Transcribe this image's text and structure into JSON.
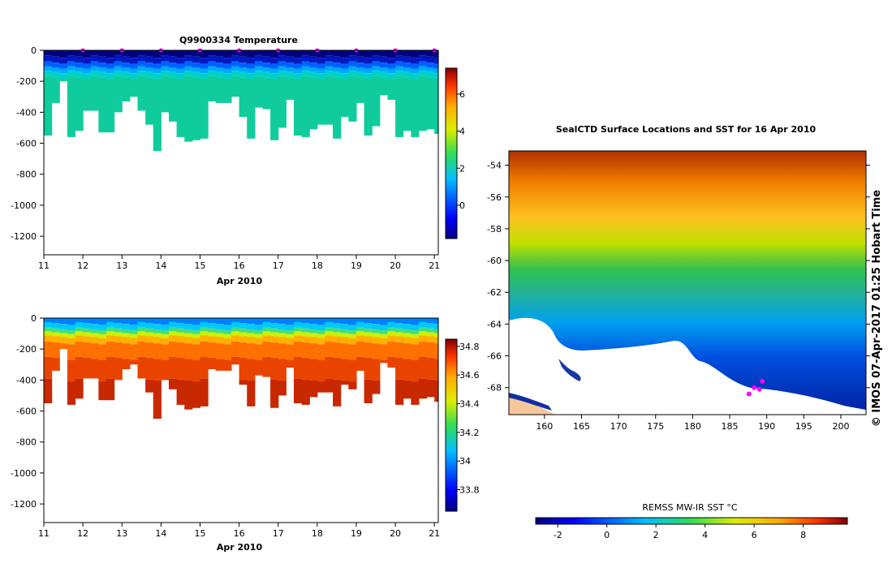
{
  "chart_data": [
    {
      "type": "heatmap",
      "title": "Q9900334  Temperature",
      "xlabel": "Apr 2010",
      "ylabel": "",
      "x_ticks": [
        "11",
        "12",
        "13",
        "14",
        "15",
        "16",
        "17",
        "18",
        "19",
        "20",
        "21"
      ],
      "xlim": [
        11,
        21.1
      ],
      "y_ticks": [
        "0",
        "-200",
        "-400",
        "-600",
        "-800",
        "-1000",
        "-1200"
      ],
      "ylim": [
        -1320,
        0
      ],
      "colorbar": {
        "ticks": [
          "6",
          "4",
          "2",
          "0"
        ],
        "range": [
          -1.8,
          7.4
        ]
      },
      "profile_times": [
        11.0,
        11.2,
        11.4,
        11.6,
        11.8,
        12.0,
        12.2,
        12.4,
        12.6,
        12.8,
        13.0,
        13.2,
        13.4,
        13.6,
        13.8,
        14.0,
        14.2,
        14.4,
        14.6,
        14.8,
        15.0,
        15.2,
        15.4,
        15.6,
        15.8,
        16.0,
        16.2,
        16.4,
        16.6,
        16.8,
        17.0,
        17.2,
        17.4,
        17.6,
        17.8,
        18.0,
        18.2,
        18.4,
        18.6,
        18.8,
        19.0,
        19.2,
        19.4,
        19.6,
        19.8,
        20.0,
        20.2,
        20.4,
        20.6,
        20.8,
        21.0
      ],
      "max_depths": [
        550,
        340,
        200,
        560,
        520,
        390,
        390,
        530,
        530,
        400,
        330,
        300,
        390,
        480,
        650,
        400,
        460,
        560,
        590,
        580,
        570,
        330,
        340,
        340,
        300,
        430,
        570,
        370,
        380,
        580,
        500,
        320,
        550,
        560,
        510,
        480,
        480,
        570,
        430,
        460,
        340,
        550,
        490,
        290,
        320,
        560,
        520,
        560,
        520,
        510,
        540
      ],
      "markers": [
        12,
        13,
        14,
        15,
        16,
        17,
        18,
        19,
        20,
        21
      ]
    },
    {
      "type": "heatmap",
      "title": "",
      "xlabel": "Apr 2010",
      "ylabel": "",
      "x_ticks": [
        "11",
        "12",
        "13",
        "14",
        "15",
        "16",
        "17",
        "18",
        "19",
        "20",
        "21"
      ],
      "xlim": [
        11,
        21.1
      ],
      "y_ticks": [
        "0",
        "-200",
        "-400",
        "-600",
        "-800",
        "-1000",
        "-1200"
      ],
      "ylim": [
        -1320,
        0
      ],
      "colorbar": {
        "ticks": [
          "34.8",
          "34.6",
          "34.4",
          "34.2",
          "34",
          "33.8"
        ],
        "range": [
          33.65,
          34.85
        ]
      }
    },
    {
      "type": "heatmap",
      "title": "SealCTD Surface Locations and SST for 16 Apr 2010",
      "xlabel": "",
      "ylabel": "",
      "x_ticks": [
        "160",
        "165",
        "170",
        "175",
        "180",
        "185",
        "190",
        "195",
        "200"
      ],
      "xlim": [
        155.2,
        203.4
      ],
      "y_ticks": [
        "-54",
        "-56",
        "-58",
        "-60",
        "-62",
        "-64",
        "-66",
        "-68"
      ],
      "ylim": [
        -69.7,
        -53.1
      ],
      "colorbar": {
        "label": "REMSS MW-IR SST °C",
        "ticks": [
          "-2",
          "0",
          "2",
          "4",
          "6",
          "8"
        ],
        "range": [
          -2.9,
          9.8
        ]
      },
      "seal_positions": [
        [
          187.6,
          -68.4
        ],
        [
          188.3,
          -68.0
        ],
        [
          189.0,
          -68.1
        ],
        [
          189.4,
          -67.6
        ]
      ],
      "side_label": "© IMOS 07-Apr-2017 01:25 Hobart Time"
    }
  ]
}
